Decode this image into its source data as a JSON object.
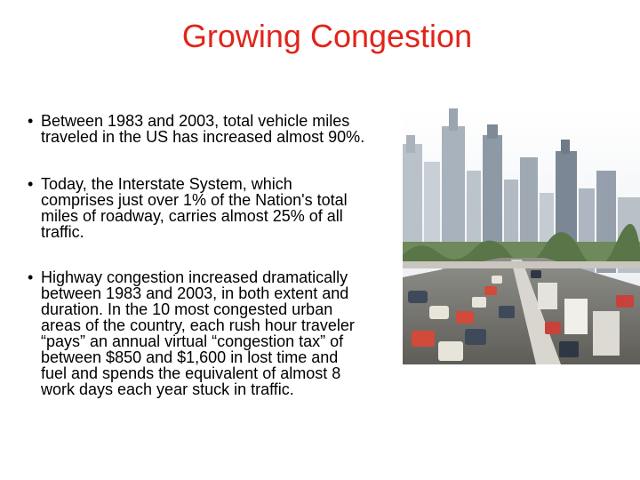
{
  "slide": {
    "title": "Growing Congestion",
    "bullet_marker": "•",
    "bullets": [
      "Between 1983 and 2003, total vehicle miles\ntraveled in the US has increased almost 90%.",
      "Today, the Interstate System, which\ncomprises just over 1% of the Nation's total\nmiles of roadway, carries almost 25% of all\ntraffic.",
      "Highway congestion increased dramatically\nbetween 1983 and 2003, in both extent and\nduration. In the 10 most congested urban\nareas of the country, each rush hour traveler\n“pays” an annual virtual “congestion tax” of\nbetween $850 and $1,600 in lost time and\nfuel and spends the equivalent of almost 8\nwork days each year stuck in traffic."
    ]
  },
  "colors": {
    "title": "#e2241b",
    "text": "#000000",
    "background": "#ffffff"
  },
  "photo": {
    "icon": "city-highway-traffic-photo"
  }
}
